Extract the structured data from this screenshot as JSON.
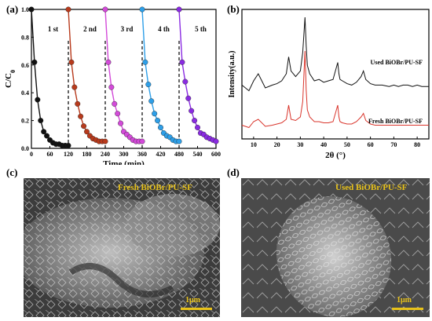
{
  "panels": {
    "a": {
      "label": "(a)"
    },
    "b": {
      "label": "(b)"
    },
    "c": {
      "label": "(c)",
      "caption": "Fresh BiOBr/PU-SF",
      "scale": "1μm"
    },
    "d": {
      "label": "(d)",
      "caption": "Used BiOBr/PU-SF",
      "scale": "1μm"
    }
  },
  "colors": {
    "cycle1": "#111111",
    "cycle2": "#b83a1c",
    "cycle3": "#d34ad9",
    "cycle4": "#2e9fe8",
    "cycle5": "#8a2be2",
    "used_line": "#111111",
    "fresh_line": "#d9342b",
    "scale_text": "#e8c21a"
  },
  "chart_data": [
    {
      "type": "line",
      "xlabel": "Time (min)",
      "ylabel": "C/C0",
      "xlim": [
        0,
        600
      ],
      "ylim": [
        0,
        1.0
      ],
      "xticks": [
        "0",
        "60",
        "120",
        "180",
        "240",
        "300",
        "360",
        "420",
        "480",
        "540",
        "600"
      ],
      "yticks": [
        "0.0",
        "0.2",
        "0.4",
        "0.6",
        "0.8",
        "1.0"
      ],
      "cycle_dividers": [
        120,
        240,
        360,
        480
      ],
      "series": [
        {
          "name": "1 st",
          "x": [
            0,
            10,
            20,
            30,
            40,
            50,
            60,
            70,
            80,
            90,
            100,
            110,
            120
          ],
          "y": [
            1.0,
            0.62,
            0.35,
            0.2,
            0.12,
            0.09,
            0.06,
            0.04,
            0.03,
            0.03,
            0.02,
            0.02,
            0.02
          ]
        },
        {
          "name": "2 nd",
          "x": [
            120,
            130,
            140,
            150,
            160,
            170,
            180,
            190,
            200,
            210,
            220,
            230,
            240
          ],
          "y": [
            1.0,
            0.62,
            0.44,
            0.32,
            0.23,
            0.16,
            0.12,
            0.09,
            0.07,
            0.06,
            0.05,
            0.05,
            0.05
          ]
        },
        {
          "name": "3 rd",
          "x": [
            240,
            250,
            260,
            270,
            280,
            290,
            300,
            310,
            320,
            330,
            340,
            350,
            360
          ],
          "y": [
            1.0,
            0.62,
            0.44,
            0.32,
            0.25,
            0.18,
            0.12,
            0.1,
            0.08,
            0.06,
            0.05,
            0.05,
            0.05
          ]
        },
        {
          "name": "4 th",
          "x": [
            360,
            370,
            380,
            390,
            400,
            410,
            420,
            430,
            440,
            450,
            460,
            470,
            480
          ],
          "y": [
            1.0,
            0.62,
            0.46,
            0.34,
            0.25,
            0.2,
            0.15,
            0.11,
            0.09,
            0.08,
            0.06,
            0.05,
            0.05
          ]
        },
        {
          "name": "5 th",
          "x": [
            480,
            490,
            500,
            510,
            520,
            530,
            540,
            550,
            560,
            570,
            580,
            590,
            600
          ],
          "y": [
            1.0,
            0.62,
            0.48,
            0.36,
            0.27,
            0.2,
            0.15,
            0.11,
            0.1,
            0.08,
            0.07,
            0.06,
            0.05
          ]
        }
      ]
    },
    {
      "type": "line",
      "xlabel": "2θ (°)",
      "ylabel": "Intensity(a.u.)",
      "xlim": [
        5,
        85
      ],
      "xticks": [
        "10",
        "20",
        "30",
        "40",
        "50",
        "60",
        "70",
        "80"
      ],
      "series": [
        {
          "name": "Used BiOBr/PU-SF",
          "x": [
            5,
            8,
            10,
            12,
            15,
            18,
            20,
            22,
            24,
            25,
            26,
            28,
            30,
            31,
            32,
            32.5,
            33,
            34,
            36,
            38,
            40,
            42,
            44,
            46,
            46.5,
            47,
            48,
            50,
            52,
            54,
            56,
            57,
            58,
            60,
            62,
            65,
            68,
            70,
            72,
            74,
            76,
            78,
            80,
            82,
            85
          ],
          "y": [
            0.52,
            0.48,
            0.55,
            0.6,
            0.5,
            0.52,
            0.53,
            0.55,
            0.6,
            0.72,
            0.62,
            0.58,
            0.62,
            0.75,
            1.0,
            0.8,
            0.66,
            0.6,
            0.55,
            0.56,
            0.54,
            0.55,
            0.56,
            0.68,
            0.6,
            0.56,
            0.55,
            0.53,
            0.52,
            0.54,
            0.58,
            0.62,
            0.56,
            0.53,
            0.52,
            0.52,
            0.51,
            0.52,
            0.51,
            0.52,
            0.52,
            0.51,
            0.52,
            0.51,
            0.51
          ]
        },
        {
          "name": "Fresh BiOBr/PU-SF",
          "x": [
            5,
            8,
            10,
            12,
            15,
            18,
            20,
            22,
            24,
            25,
            26,
            28,
            30,
            31,
            32,
            32.5,
            33,
            34,
            36,
            38,
            40,
            42,
            44,
            46,
            46.5,
            47,
            48,
            50,
            52,
            54,
            56,
            57,
            58,
            60,
            62,
            65,
            68,
            70,
            72,
            74,
            76,
            78,
            80,
            82,
            85
          ],
          "y": [
            0.05,
            0.03,
            0.08,
            0.1,
            0.04,
            0.05,
            0.06,
            0.07,
            0.1,
            0.22,
            0.1,
            0.09,
            0.12,
            0.25,
            0.68,
            0.35,
            0.18,
            0.12,
            0.08,
            0.08,
            0.07,
            0.07,
            0.08,
            0.22,
            0.12,
            0.08,
            0.07,
            0.06,
            0.06,
            0.08,
            0.12,
            0.15,
            0.09,
            0.06,
            0.05,
            0.05,
            0.05,
            0.05,
            0.05,
            0.05,
            0.05,
            0.05,
            0.05,
            0.05,
            0.05
          ]
        }
      ]
    }
  ]
}
